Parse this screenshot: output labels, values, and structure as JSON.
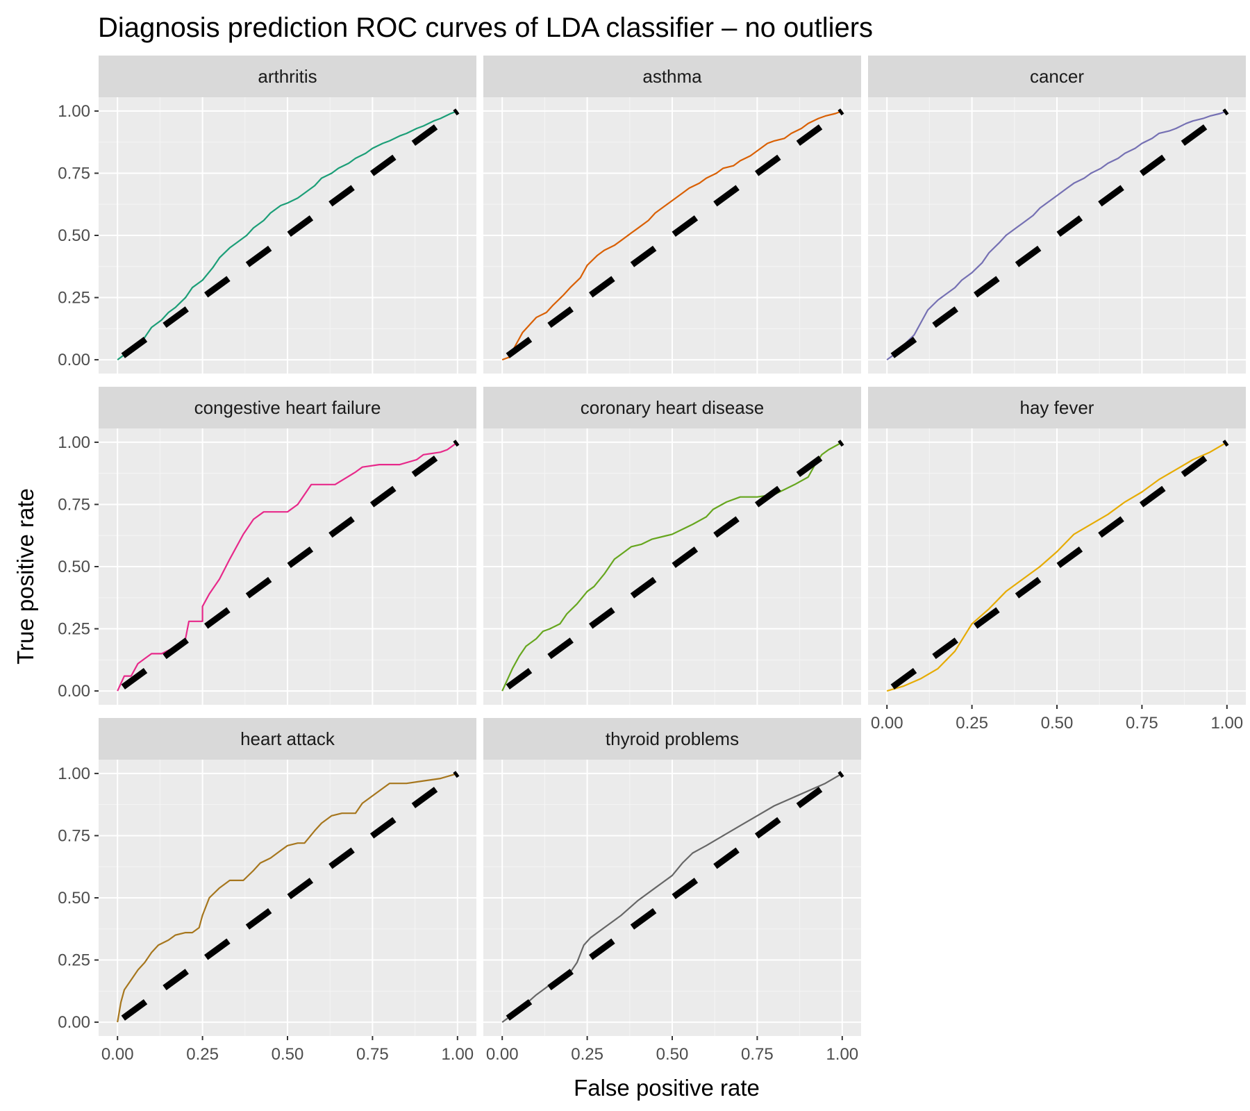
{
  "chart_data": {
    "type": "line",
    "title": "Diagnosis prediction ROC curves of LDA classifier – no outliers",
    "xlabel": "False positive rate",
    "ylabel": "True positive rate",
    "xlim": [
      0,
      1
    ],
    "ylim": [
      0,
      1
    ],
    "x_ticks": [
      "0.00",
      "0.25",
      "0.50",
      "0.75",
      "1.00"
    ],
    "y_ticks": [
      "0.00",
      "0.25",
      "0.50",
      "0.75",
      "1.00"
    ],
    "grid": true,
    "legend": "none",
    "reference_line": {
      "x": [
        0,
        1
      ],
      "y": [
        0,
        1
      ],
      "style": "dashed",
      "color": "#000000"
    },
    "panels": [
      {
        "name": "arthritis",
        "color": "#1b9e77",
        "x": [
          0,
          0.02,
          0.05,
          0.08,
          0.1,
          0.13,
          0.15,
          0.17,
          0.2,
          0.22,
          0.25,
          0.28,
          0.3,
          0.33,
          0.35,
          0.38,
          0.4,
          0.43,
          0.45,
          0.48,
          0.5,
          0.53,
          0.55,
          0.58,
          0.6,
          0.63,
          0.65,
          0.68,
          0.7,
          0.73,
          0.75,
          0.78,
          0.8,
          0.83,
          0.85,
          0.88,
          0.9,
          0.93,
          0.95,
          0.98,
          1
        ],
        "y": [
          0,
          0.02,
          0.05,
          0.09,
          0.13,
          0.16,
          0.19,
          0.21,
          0.25,
          0.29,
          0.32,
          0.37,
          0.41,
          0.45,
          0.47,
          0.5,
          0.53,
          0.56,
          0.59,
          0.62,
          0.63,
          0.65,
          0.67,
          0.7,
          0.73,
          0.75,
          0.77,
          0.79,
          0.81,
          0.83,
          0.85,
          0.87,
          0.88,
          0.9,
          0.91,
          0.93,
          0.94,
          0.96,
          0.97,
          0.99,
          1
        ]
      },
      {
        "name": "asthma",
        "color": "#d95f02",
        "x": [
          0,
          0.02,
          0.04,
          0.06,
          0.08,
          0.1,
          0.13,
          0.15,
          0.18,
          0.2,
          0.23,
          0.25,
          0.28,
          0.3,
          0.33,
          0.35,
          0.38,
          0.4,
          0.43,
          0.45,
          0.48,
          0.5,
          0.53,
          0.55,
          0.58,
          0.6,
          0.63,
          0.65,
          0.68,
          0.7,
          0.73,
          0.75,
          0.78,
          0.8,
          0.83,
          0.85,
          0.88,
          0.9,
          0.93,
          0.95,
          0.98,
          1
        ],
        "y": [
          0,
          0.01,
          0.06,
          0.11,
          0.14,
          0.17,
          0.19,
          0.22,
          0.26,
          0.29,
          0.33,
          0.38,
          0.42,
          0.44,
          0.46,
          0.48,
          0.51,
          0.53,
          0.56,
          0.59,
          0.62,
          0.64,
          0.67,
          0.69,
          0.71,
          0.73,
          0.75,
          0.77,
          0.78,
          0.8,
          0.82,
          0.84,
          0.87,
          0.88,
          0.89,
          0.91,
          0.93,
          0.95,
          0.97,
          0.98,
          0.99,
          1
        ]
      },
      {
        "name": "cancer",
        "color": "#7570b3",
        "x": [
          0,
          0.03,
          0.05,
          0.08,
          0.1,
          0.12,
          0.15,
          0.18,
          0.2,
          0.22,
          0.25,
          0.28,
          0.3,
          0.33,
          0.35,
          0.38,
          0.4,
          0.43,
          0.45,
          0.48,
          0.5,
          0.53,
          0.55,
          0.58,
          0.6,
          0.63,
          0.65,
          0.68,
          0.7,
          0.73,
          0.75,
          0.78,
          0.8,
          0.83,
          0.85,
          0.88,
          0.9,
          0.93,
          0.95,
          0.98,
          1
        ],
        "y": [
          0,
          0.03,
          0.06,
          0.1,
          0.15,
          0.2,
          0.24,
          0.27,
          0.29,
          0.32,
          0.35,
          0.39,
          0.43,
          0.47,
          0.5,
          0.53,
          0.55,
          0.58,
          0.61,
          0.64,
          0.66,
          0.69,
          0.71,
          0.73,
          0.75,
          0.77,
          0.79,
          0.81,
          0.83,
          0.85,
          0.87,
          0.89,
          0.91,
          0.92,
          0.93,
          0.95,
          0.96,
          0.97,
          0.98,
          0.99,
          1
        ]
      },
      {
        "name": "congestive heart failure",
        "color": "#e7298a",
        "x": [
          0,
          0.02,
          0.04,
          0.06,
          0.08,
          0.1,
          0.13,
          0.16,
          0.18,
          0.2,
          0.21,
          0.25,
          0.25,
          0.27,
          0.3,
          0.33,
          0.35,
          0.37,
          0.4,
          0.43,
          0.45,
          0.5,
          0.53,
          0.56,
          0.57,
          0.61,
          0.64,
          0.7,
          0.72,
          0.77,
          0.83,
          0.88,
          0.9,
          0.95,
          0.97,
          0.99,
          1
        ],
        "y": [
          0,
          0.06,
          0.06,
          0.11,
          0.13,
          0.15,
          0.15,
          0.17,
          0.17,
          0.21,
          0.28,
          0.28,
          0.34,
          0.39,
          0.45,
          0.53,
          0.58,
          0.63,
          0.69,
          0.72,
          0.72,
          0.72,
          0.75,
          0.81,
          0.83,
          0.83,
          0.83,
          0.88,
          0.9,
          0.91,
          0.91,
          0.93,
          0.95,
          0.96,
          0.97,
          0.99,
          1
        ]
      },
      {
        "name": "coronary heart disease",
        "color": "#66a61e",
        "x": [
          0,
          0.01,
          0.03,
          0.05,
          0.07,
          0.1,
          0.12,
          0.14,
          0.17,
          0.19,
          0.22,
          0.25,
          0.27,
          0.3,
          0.33,
          0.36,
          0.38,
          0.41,
          0.44,
          0.47,
          0.5,
          0.53,
          0.56,
          0.6,
          0.62,
          0.66,
          0.7,
          0.75,
          0.8,
          0.83,
          0.86,
          0.9,
          0.92,
          0.94,
          0.96,
          1
        ],
        "y": [
          0,
          0.03,
          0.09,
          0.14,
          0.18,
          0.21,
          0.24,
          0.25,
          0.27,
          0.31,
          0.35,
          0.4,
          0.42,
          0.47,
          0.53,
          0.56,
          0.58,
          0.59,
          0.61,
          0.62,
          0.63,
          0.65,
          0.67,
          0.7,
          0.73,
          0.76,
          0.78,
          0.78,
          0.79,
          0.81,
          0.83,
          0.86,
          0.91,
          0.95,
          0.97,
          1
        ]
      },
      {
        "name": "hay fever",
        "color": "#e6ab02",
        "x": [
          0,
          0.05,
          0.1,
          0.15,
          0.2,
          0.25,
          0.3,
          0.35,
          0.4,
          0.45,
          0.5,
          0.55,
          0.6,
          0.65,
          0.7,
          0.75,
          0.8,
          0.85,
          0.9,
          0.95,
          1
        ],
        "y": [
          0,
          0.02,
          0.05,
          0.09,
          0.16,
          0.27,
          0.33,
          0.4,
          0.45,
          0.5,
          0.56,
          0.63,
          0.67,
          0.71,
          0.76,
          0.8,
          0.85,
          0.89,
          0.93,
          0.96,
          1
        ]
      },
      {
        "name": "heart attack",
        "color": "#a6761d",
        "x": [
          0,
          0.01,
          0.02,
          0.04,
          0.06,
          0.08,
          0.1,
          0.12,
          0.15,
          0.17,
          0.2,
          0.22,
          0.24,
          0.25,
          0.27,
          0.3,
          0.33,
          0.37,
          0.4,
          0.42,
          0.45,
          0.48,
          0.5,
          0.53,
          0.55,
          0.58,
          0.6,
          0.63,
          0.66,
          0.7,
          0.72,
          0.75,
          0.78,
          0.8,
          0.85,
          0.9,
          0.95,
          1
        ],
        "y": [
          0,
          0.08,
          0.13,
          0.17,
          0.21,
          0.24,
          0.28,
          0.31,
          0.33,
          0.35,
          0.36,
          0.36,
          0.38,
          0.43,
          0.5,
          0.54,
          0.57,
          0.57,
          0.61,
          0.64,
          0.66,
          0.69,
          0.71,
          0.72,
          0.72,
          0.77,
          0.8,
          0.83,
          0.84,
          0.84,
          0.88,
          0.91,
          0.94,
          0.96,
          0.96,
          0.97,
          0.98,
          1
        ]
      },
      {
        "name": "thyroid problems",
        "color": "#666666",
        "x": [
          0,
          0.05,
          0.1,
          0.15,
          0.2,
          0.22,
          0.24,
          0.26,
          0.3,
          0.35,
          0.4,
          0.45,
          0.5,
          0.53,
          0.56,
          0.6,
          0.65,
          0.7,
          0.75,
          0.8,
          0.85,
          0.9,
          0.95,
          1
        ],
        "y": [
          0,
          0.05,
          0.11,
          0.16,
          0.2,
          0.24,
          0.31,
          0.34,
          0.38,
          0.43,
          0.49,
          0.54,
          0.59,
          0.64,
          0.68,
          0.71,
          0.75,
          0.79,
          0.83,
          0.87,
          0.9,
          0.93,
          0.96,
          1
        ]
      }
    ]
  }
}
